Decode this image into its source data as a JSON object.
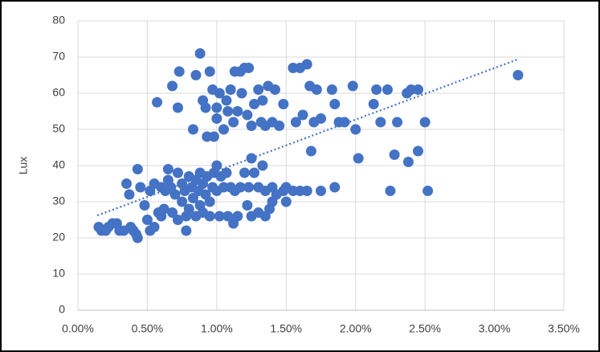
{
  "chart_data": {
    "type": "scatter",
    "y_label": "Lux",
    "xlim": [
      0,
      3.5
    ],
    "xticks": [
      {
        "value": 0,
        "label": "0.00%"
      },
      {
        "value": 0.5,
        "label": "0.50%"
      },
      {
        "value": 1,
        "label": "1.00%"
      },
      {
        "value": 1.5,
        "label": "1.50%"
      },
      {
        "value": 2,
        "label": "2.00%"
      },
      {
        "value": 2.5,
        "label": "2.50%"
      },
      {
        "value": 3,
        "label": "3.00%"
      },
      {
        "value": 3.5,
        "label": "3.50%"
      }
    ],
    "ylim": [
      0,
      80
    ],
    "yticks": [
      0,
      10,
      20,
      30,
      40,
      50,
      60,
      70,
      80
    ],
    "grid": true,
    "series": [
      {
        "color": "#4472c4",
        "x": [
          0.15,
          0.17,
          0.2,
          0.22,
          0.25,
          0.28,
          0.3,
          0.33,
          0.35,
          0.37,
          0.38,
          0.4,
          0.42,
          0.43,
          0.43,
          0.45,
          0.48,
          0.5,
          0.52,
          0.52,
          0.55,
          0.55,
          0.58,
          0.6,
          0.6,
          0.62,
          0.63,
          0.65,
          0.65,
          0.67,
          0.68,
          0.7,
          0.72,
          0.72,
          0.75,
          0.75,
          0.77,
          0.78,
          0.78,
          0.8,
          0.8,
          0.82,
          0.83,
          0.85,
          0.85,
          0.87,
          0.88,
          0.88,
          0.9,
          0.9,
          0.92,
          0.93,
          0.95,
          0.95,
          0.97,
          0.98,
          1.0,
          1.0,
          1.02,
          1.03,
          1.05,
          1.07,
          1.08,
          1.1,
          1.12,
          1.13,
          1.15,
          1.17,
          1.2,
          1.22,
          1.23,
          1.25,
          1.25,
          1.27,
          1.3,
          1.3,
          1.33,
          1.35,
          1.35,
          1.38,
          1.4,
          1.4,
          1.43,
          1.48,
          1.5,
          1.5,
          1.55,
          1.6,
          1.65,
          1.75,
          1.85,
          2.02,
          2.25,
          2.28,
          2.38,
          2.45,
          2.52,
          3.17
        ],
        "values": [
          23,
          22,
          22,
          23,
          24,
          24,
          22,
          22,
          35,
          32,
          23,
          22,
          21,
          20,
          39,
          34,
          29,
          25,
          22,
          33,
          23,
          35,
          27,
          26,
          34,
          28,
          33,
          39,
          36,
          34,
          27,
          32,
          38,
          25,
          30,
          35,
          33,
          26,
          22,
          37,
          28,
          34,
          31,
          36,
          26,
          33,
          38,
          29,
          35,
          27,
          32,
          37,
          30,
          26,
          34,
          38,
          40,
          33,
          26,
          37,
          34,
          38,
          26,
          34,
          24,
          33,
          26,
          34,
          38,
          29,
          34,
          42,
          26,
          38,
          34,
          27,
          40,
          26,
          33,
          28,
          30,
          34,
          32,
          33,
          30,
          34,
          33,
          33,
          33,
          33,
          34,
          42,
          33,
          43,
          41,
          44,
          33,
          65
        ]
      },
      {
        "color": "#4472c4",
        "x": [
          0.57,
          0.68,
          0.72,
          0.73,
          0.83,
          0.85,
          0.88,
          0.9,
          0.92,
          0.93,
          0.95,
          0.97,
          0.98,
          1.0,
          1.0,
          1.02,
          1.05,
          1.07,
          1.08,
          1.1,
          1.12,
          1.13,
          1.15,
          1.17,
          1.18,
          1.2,
          1.22,
          1.23,
          1.25,
          1.27,
          1.3,
          1.32,
          1.33,
          1.35,
          1.37,
          1.4,
          1.42,
          1.45,
          1.48,
          1.55,
          1.57,
          1.6,
          1.62,
          1.65,
          1.67,
          1.68,
          1.7,
          1.72,
          1.75,
          1.83,
          1.85,
          1.88,
          1.92,
          1.98,
          2.0,
          2.13,
          2.15,
          2.18,
          2.23,
          2.3,
          2.37,
          2.4,
          2.45,
          2.5
        ],
        "values": [
          57.5,
          62,
          56,
          66,
          50,
          65,
          71,
          58,
          56,
          48,
          66,
          61,
          48,
          56,
          53,
          60,
          50,
          58,
          55,
          61,
          52,
          66,
          55,
          66,
          60,
          67,
          54,
          67,
          51,
          57,
          61,
          52,
          58,
          51,
          62,
          52,
          61,
          51,
          57,
          67,
          52,
          67,
          54,
          68,
          62,
          44,
          52,
          61,
          53,
          61,
          57,
          52,
          52,
          62,
          50,
          57,
          61,
          52,
          61,
          52,
          60,
          61,
          61,
          52
        ]
      }
    ],
    "trendline": {
      "color": "#4472c4",
      "x": [
        0.14,
        3.17
      ],
      "values": [
        26.2,
        69.4
      ]
    }
  }
}
